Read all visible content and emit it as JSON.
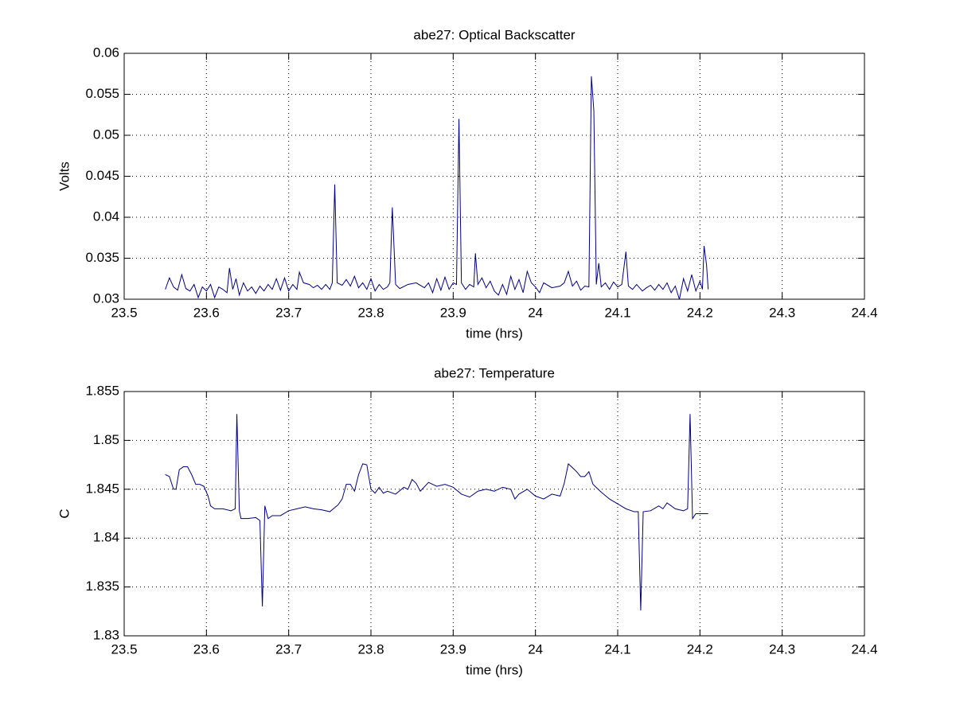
{
  "chart_data": [
    {
      "type": "line",
      "title": "abe27: Optical Backscatter",
      "xlabel": "time (hrs)",
      "ylabel": "Volts",
      "xlim": [
        23.5,
        24.4
      ],
      "xticks": [
        23.5,
        23.6,
        23.7,
        23.8,
        23.9,
        24,
        24.1,
        24.2,
        24.3,
        24.4
      ],
      "ylim": [
        0.03,
        0.06
      ],
      "yticks": [
        0.03,
        0.035,
        0.04,
        0.045,
        0.05,
        0.055,
        0.06
      ],
      "grid": true,
      "series": [
        {
          "color": "#000080",
          "x": [
            23.55,
            23.555,
            23.56,
            23.565,
            23.57,
            23.575,
            23.58,
            23.585,
            23.59,
            23.595,
            23.6,
            23.605,
            23.61,
            23.615,
            23.62,
            23.625,
            23.628,
            23.632,
            23.636,
            23.64,
            23.645,
            23.65,
            23.655,
            23.66,
            23.665,
            23.67,
            23.675,
            23.68,
            23.685,
            23.69,
            23.695,
            23.7,
            23.705,
            23.71,
            23.713,
            23.718,
            23.725,
            23.73,
            23.735,
            23.74,
            23.745,
            23.75,
            23.753,
            23.756,
            23.759,
            23.765,
            23.77,
            23.775,
            23.78,
            23.785,
            23.79,
            23.795,
            23.8,
            23.805,
            23.81,
            23.815,
            23.82,
            23.823,
            23.826,
            23.83,
            23.835,
            23.845,
            23.855,
            23.865,
            23.87,
            23.875,
            23.88,
            23.885,
            23.89,
            23.895,
            23.9,
            23.904,
            23.907,
            23.91,
            23.915,
            23.92,
            23.925,
            23.927,
            23.93,
            23.935,
            23.94,
            23.945,
            23.95,
            23.955,
            23.96,
            23.965,
            23.97,
            23.975,
            23.98,
            23.985,
            23.99,
            23.995,
            24,
            24.005,
            24.01,
            24.02,
            24.03,
            24.035,
            24.04,
            24.045,
            24.05,
            24.055,
            24.06,
            24.065,
            24.068,
            24.071,
            24.074,
            24.077,
            24.08,
            24.085,
            24.09,
            24.095,
            24.1,
            24.105,
            24.11,
            24.113,
            24.118,
            24.123,
            24.13,
            24.135,
            24.14,
            24.145,
            24.15,
            24.155,
            24.16,
            24.165,
            24.17,
            24.175,
            24.18,
            24.185,
            24.19,
            24.195,
            24.2,
            24.203,
            24.205,
            24.208,
            24.21
          ],
          "values": [
            0.0312,
            0.0326,
            0.0315,
            0.0311,
            0.033,
            0.0313,
            0.031,
            0.0318,
            0.0302,
            0.0315,
            0.031,
            0.0318,
            0.0302,
            0.0315,
            0.0312,
            0.0308,
            0.0338,
            0.0312,
            0.0325,
            0.0305,
            0.032,
            0.031,
            0.0315,
            0.0307,
            0.0316,
            0.031,
            0.0318,
            0.0312,
            0.0325,
            0.0311,
            0.0326,
            0.031,
            0.0318,
            0.0312,
            0.0333,
            0.032,
            0.0318,
            0.0314,
            0.0317,
            0.0312,
            0.0318,
            0.0312,
            0.032,
            0.044,
            0.032,
            0.0317,
            0.0324,
            0.0316,
            0.0328,
            0.0314,
            0.032,
            0.0312,
            0.0325,
            0.031,
            0.0318,
            0.0312,
            0.0315,
            0.032,
            0.0412,
            0.0318,
            0.0313,
            0.0318,
            0.032,
            0.0314,
            0.032,
            0.0308,
            0.0325,
            0.0311,
            0.0327,
            0.0312,
            0.032,
            0.0318,
            0.052,
            0.032,
            0.0312,
            0.0318,
            0.0315,
            0.0356,
            0.0318,
            0.0326,
            0.0314,
            0.0322,
            0.031,
            0.0305,
            0.0318,
            0.0306,
            0.0328,
            0.0312,
            0.0324,
            0.0308,
            0.0334,
            0.032,
            0.0315,
            0.0308,
            0.032,
            0.0314,
            0.0316,
            0.032,
            0.0334,
            0.0316,
            0.0322,
            0.0311,
            0.0316,
            0.0315,
            0.0572,
            0.053,
            0.0318,
            0.0344,
            0.0315,
            0.032,
            0.0312,
            0.0321,
            0.0315,
            0.0318,
            0.0358,
            0.0316,
            0.0312,
            0.0318,
            0.031,
            0.0314,
            0.0317,
            0.0311,
            0.0318,
            0.0312,
            0.032,
            0.0308,
            0.0316,
            0.03,
            0.0325,
            0.031,
            0.033,
            0.031,
            0.0322,
            0.0312,
            0.0365,
            0.0342,
            0.0312
          ]
        }
      ]
    },
    {
      "type": "line",
      "title": "abe27: Temperature",
      "xlabel": "time (hrs)",
      "ylabel": "C",
      "xlim": [
        23.5,
        24.4
      ],
      "xticks": [
        23.5,
        23.6,
        23.7,
        23.8,
        23.9,
        24,
        24.1,
        24.2,
        24.3,
        24.4
      ],
      "ylim": [
        1.83,
        1.855
      ],
      "yticks": [
        1.83,
        1.835,
        1.84,
        1.845,
        1.85,
        1.855
      ],
      "grid": true,
      "series": [
        {
          "color": "#000080",
          "x": [
            23.55,
            23.555,
            23.56,
            23.563,
            23.567,
            23.572,
            23.577,
            23.582,
            23.587,
            23.592,
            23.597,
            23.602,
            23.605,
            23.61,
            23.62,
            23.63,
            23.635,
            23.637,
            23.64,
            23.642,
            23.65,
            23.66,
            23.665,
            23.668,
            23.671,
            23.675,
            23.68,
            23.69,
            23.7,
            23.71,
            23.72,
            23.73,
            23.74,
            23.75,
            23.76,
            23.765,
            23.77,
            23.775,
            23.78,
            23.785,
            23.79,
            23.795,
            23.8,
            23.805,
            23.81,
            23.815,
            23.82,
            23.83,
            23.84,
            23.845,
            23.85,
            23.855,
            23.86,
            23.87,
            23.88,
            23.89,
            23.9,
            23.91,
            23.92,
            23.93,
            23.94,
            23.95,
            23.96,
            23.97,
            23.975,
            23.98,
            23.99,
            24,
            24.01,
            24.02,
            24.03,
            24.035,
            24.04,
            24.045,
            24.05,
            24.055,
            24.06,
            24.065,
            24.07,
            24.08,
            24.09,
            24.1,
            24.11,
            24.12,
            24.125,
            24.128,
            24.131,
            24.14,
            24.15,
            24.155,
            24.16,
            24.17,
            24.18,
            24.185,
            24.188,
            24.191,
            24.195,
            24.21
          ],
          "values": [
            1.8465,
            1.8463,
            1.845,
            1.845,
            1.847,
            1.8473,
            1.8473,
            1.8465,
            1.8455,
            1.8455,
            1.8453,
            1.8443,
            1.8433,
            1.843,
            1.843,
            1.8428,
            1.843,
            1.8527,
            1.8428,
            1.842,
            1.842,
            1.8421,
            1.8418,
            1.833,
            1.8433,
            1.842,
            1.8423,
            1.8423,
            1.8428,
            1.843,
            1.8432,
            1.843,
            1.8429,
            1.8427,
            1.8434,
            1.844,
            1.8455,
            1.8455,
            1.8448,
            1.8465,
            1.8476,
            1.8475,
            1.845,
            1.8446,
            1.8452,
            1.8446,
            1.8448,
            1.8445,
            1.8452,
            1.845,
            1.846,
            1.8456,
            1.8448,
            1.8457,
            1.8453,
            1.8455,
            1.8452,
            1.8445,
            1.8442,
            1.8448,
            1.845,
            1.8448,
            1.8452,
            1.845,
            1.844,
            1.8445,
            1.845,
            1.8443,
            1.844,
            1.8445,
            1.8443,
            1.8456,
            1.8476,
            1.8472,
            1.8468,
            1.8463,
            1.8463,
            1.8468,
            1.8455,
            1.8447,
            1.844,
            1.8435,
            1.843,
            1.8427,
            1.8427,
            1.8326,
            1.8427,
            1.8428,
            1.8433,
            1.843,
            1.8436,
            1.843,
            1.8428,
            1.843,
            1.8527,
            1.842,
            1.8425,
            1.8425
          ]
        }
      ]
    }
  ]
}
